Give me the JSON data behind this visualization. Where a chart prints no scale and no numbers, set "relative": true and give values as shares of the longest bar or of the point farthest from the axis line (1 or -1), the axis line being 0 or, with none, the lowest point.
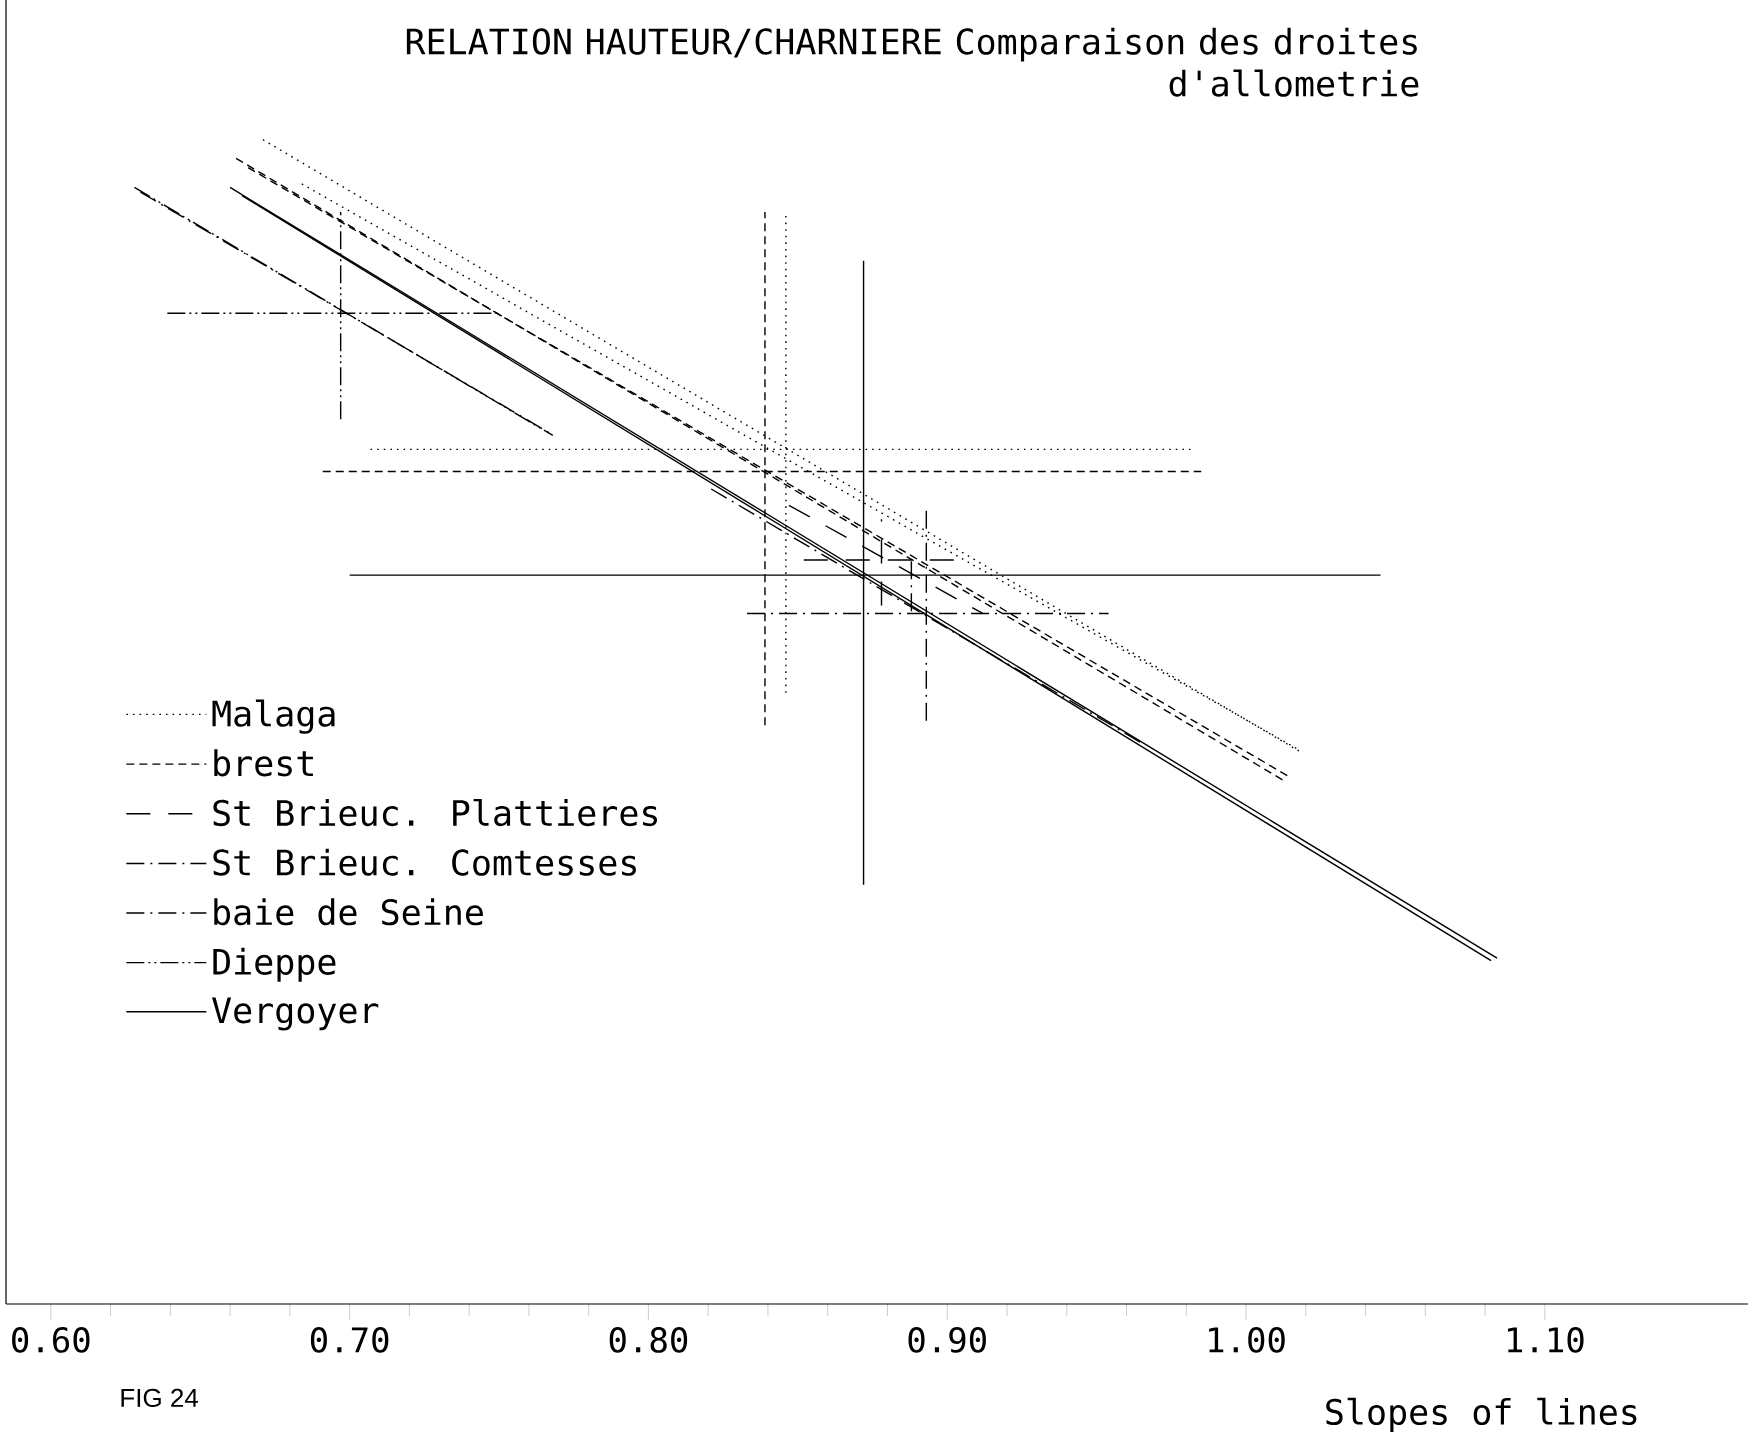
{
  "chart_data": {
    "type": "line",
    "title": "RELATION HAUTEUR/CHARNIERE Comparaison des droites d'allometrie",
    "xlabel": "Slopes of lines",
    "annotations": [
      "FIG 24"
    ],
    "relative": true,
    "xlim": [
      0.585,
      1.168
    ],
    "xticks": [
      {
        "value": 0.6,
        "label": "0.60"
      },
      {
        "value": 0.7,
        "label": "0.70"
      },
      {
        "value": 0.8,
        "label": "0.80"
      },
      {
        "value": 0.9,
        "label": "0.90"
      },
      {
        "value": 1.0,
        "label": "1.00"
      },
      {
        "value": 1.1,
        "label": "1.10"
      }
    ],
    "legend": "left",
    "marker": "none",
    "series": [
      {
        "name": "Malaga",
        "color": "#000000",
        "line_style": "dotted",
        "x": [
          0.671,
          1.019
        ],
        "values": [
          1.0,
          0.473
        ]
      },
      {
        "name": "brest",
        "color": "#000000",
        "line_style": "dashed",
        "x": [
          0.662,
          1.013
        ],
        "values": [
          0.984,
          0.449
        ]
      },
      {
        "name": "St Brieuc. Plattieres",
        "color": "#000000",
        "line_style": "longdashed",
        "x": [
          0.847,
          0.912
        ],
        "values": [
          0.686,
          0.593
        ]
      },
      {
        "name": "St Brieuc. Comtesses",
        "color": "#000000",
        "line_style": "dashdot",
        "x": [
          0.821,
          0.965
        ],
        "values": [
          0.7,
          0.482
        ]
      },
      {
        "name": "baie de Seine",
        "color": "#000000",
        "line_style": "dashdot",
        "x": [
          0.63,
          0.767
        ],
        "values": [
          0.955,
          0.748
        ]
      },
      {
        "name": "Dieppe",
        "color": "#000000",
        "line_style": "dashdotdot",
        "x": [
          0.628,
          0.768
        ],
        "values": [
          0.959,
          0.746
        ]
      },
      {
        "name": "Vergoyer",
        "color": "#000000",
        "line_style": "solid",
        "x": [
          0.66,
          1.084
        ],
        "values": [
          0.959,
          0.297
        ]
      },
      {
        "color": "#000000",
        "line_style": "dotted",
        "x": [
          0.684,
          1.017
        ],
        "values": [
          0.962,
          0.477
        ]
      },
      {
        "color": "#000000",
        "line_style": "dashed",
        "x": [
          0.666,
          1.015
        ],
        "values": [
          0.976,
          0.452
        ]
      },
      {
        "color": "#000000",
        "line_style": "solid",
        "x": [
          0.664,
          1.082
        ],
        "values": [
          0.952,
          0.295
        ]
      },
      {
        "color": "#000000",
        "line_style": "dashdotdot",
        "x": [
          0.639,
          0.75
        ],
        "values": [
          0.851,
          0.851
        ]
      },
      {
        "color": "#000000",
        "line_style": "dashdotdot",
        "x": [
          0.697,
          0.697
        ],
        "values": [
          0.76,
          0.938
        ]
      },
      {
        "color": "#000000",
        "line_style": "dotted",
        "x": [
          0.707,
          0.982
        ],
        "values": [
          0.734,
          0.734
        ]
      },
      {
        "color": "#000000",
        "line_style": "dotted",
        "x": [
          0.846,
          0.846
        ],
        "values": [
          0.525,
          0.938
        ]
      },
      {
        "color": "#000000",
        "line_style": "dashed",
        "x": [
          0.691,
          0.985
        ],
        "values": [
          0.715,
          0.715
        ]
      },
      {
        "color": "#000000",
        "line_style": "dashed",
        "x": [
          0.839,
          0.839
        ],
        "values": [
          0.497,
          0.938
        ]
      },
      {
        "color": "#000000",
        "line_style": "solid",
        "x": [
          0.7,
          1.045
        ],
        "values": [
          0.626,
          0.626
        ]
      },
      {
        "color": "#000000",
        "line_style": "solid",
        "x": [
          0.872,
          0.872
        ],
        "values": [
          0.36,
          0.896
        ]
      },
      {
        "color": "#000000",
        "line_style": "dashdot",
        "x": [
          0.833,
          0.954
        ],
        "values": [
          0.593,
          0.593
        ]
      },
      {
        "color": "#000000",
        "line_style": "dashdot",
        "x": [
          0.893,
          0.893
        ],
        "values": [
          0.501,
          0.684
        ]
      },
      {
        "color": "#000000",
        "line_style": "longdashed",
        "x": [
          0.852,
          0.903
        ],
        "values": [
          0.639,
          0.639
        ]
      },
      {
        "color": "#000000",
        "line_style": "longdashed",
        "x": [
          0.878,
          0.878
        ],
        "values": [
          0.6,
          0.674
        ]
      },
      {
        "color": "#000000",
        "line_style": "dashdot",
        "x": [
          0.888,
          0.888
        ],
        "values": [
          0.595,
          0.64
        ]
      }
    ]
  }
}
